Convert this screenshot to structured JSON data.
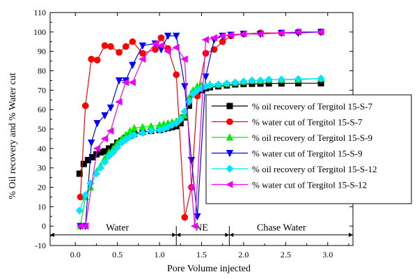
{
  "chart_data": {
    "type": "scatter",
    "title": "",
    "xlabel": "Pore Volume injected",
    "ylabel": "% Oil recovery and % Water cut",
    "xlim": [
      -0.3,
      3.3
    ],
    "ylim": [
      -10,
      110
    ],
    "xticks": [
      "0.0",
      "0.5",
      "1.0",
      "1.5",
      "2.0",
      "2.5",
      "3.0"
    ],
    "yticks": [
      "-10",
      "0",
      "10",
      "20",
      "30",
      "40",
      "50",
      "60",
      "70",
      "80",
      "90",
      "100",
      "110"
    ],
    "grid": false,
    "legend_position": "right",
    "phases": [
      {
        "label": "Water",
        "x_start": -0.3,
        "x_end": 1.2,
        "label_x": 0.5
      },
      {
        "label": "NE",
        "x_start": 1.2,
        "x_end": 1.83,
        "label_x": 1.5
      },
      {
        "label": "Chase Water",
        "x_start": 1.83,
        "x_end": 3.3,
        "label_x": 2.45
      }
    ],
    "series": [
      {
        "name": "% oil recovery of  Tergitol 15-S-7",
        "color": "#000000",
        "marker": "square",
        "points": [
          [
            0.05,
            27
          ],
          [
            0.1,
            32
          ],
          [
            0.15,
            34
          ],
          [
            0.2,
            35.5
          ],
          [
            0.25,
            37
          ],
          [
            0.3,
            38
          ],
          [
            0.35,
            38.5
          ],
          [
            0.4,
            40
          ],
          [
            0.45,
            41
          ],
          [
            0.5,
            43
          ],
          [
            0.55,
            44
          ],
          [
            0.6,
            45.5
          ],
          [
            0.65,
            46.5
          ],
          [
            0.7,
            47.5
          ],
          [
            0.8,
            48.5
          ],
          [
            0.9,
            49
          ],
          [
            1.0,
            49.5
          ],
          [
            1.05,
            50
          ],
          [
            1.1,
            50.5
          ],
          [
            1.15,
            51
          ],
          [
            1.2,
            51.5
          ],
          [
            1.25,
            53
          ],
          [
            1.3,
            56
          ],
          [
            1.35,
            62
          ],
          [
            1.4,
            68
          ],
          [
            1.45,
            69
          ],
          [
            1.5,
            70
          ],
          [
            1.55,
            71
          ],
          [
            1.6,
            71.5
          ],
          [
            1.7,
            72
          ],
          [
            1.8,
            72.5
          ],
          [
            1.9,
            73
          ],
          [
            2.0,
            73.2
          ],
          [
            2.1,
            73.3
          ],
          [
            2.2,
            73.4
          ],
          [
            2.3,
            73.5
          ],
          [
            2.45,
            73.5
          ],
          [
            2.65,
            73.6
          ],
          [
            2.92,
            73.6
          ]
        ]
      },
      {
        "name": "% water cut of  Tergitol 15-S-7",
        "color": "#ff0000",
        "marker": "circle",
        "points": [
          [
            0.06,
            15
          ],
          [
            0.12,
            62
          ],
          [
            0.19,
            86
          ],
          [
            0.26,
            85.5
          ],
          [
            0.35,
            93
          ],
          [
            0.42,
            92.5
          ],
          [
            0.52,
            89.5
          ],
          [
            0.6,
            92.5
          ],
          [
            0.68,
            95
          ],
          [
            0.8,
            89
          ],
          [
            0.95,
            91
          ],
          [
            1.02,
            97
          ],
          [
            1.1,
            91.5
          ],
          [
            1.2,
            78
          ],
          [
            1.3,
            4.5
          ],
          [
            1.38,
            20
          ],
          [
            1.45,
            67
          ],
          [
            1.55,
            89
          ],
          [
            1.65,
            91
          ],
          [
            1.75,
            95
          ],
          [
            1.85,
            98
          ],
          [
            2.0,
            99
          ],
          [
            2.2,
            99.5
          ],
          [
            2.45,
            99.5
          ],
          [
            2.65,
            100
          ],
          [
            2.92,
            100
          ]
        ]
      },
      {
        "name": "% oil recovery of  Tergitol 15-S-9",
        "color": "#00ee00",
        "marker": "triangle-up",
        "points": [
          [
            0.06,
            0
          ],
          [
            0.12,
            15
          ],
          [
            0.18,
            20
          ],
          [
            0.25,
            28
          ],
          [
            0.3,
            31
          ],
          [
            0.35,
            35
          ],
          [
            0.4,
            38
          ],
          [
            0.45,
            40
          ],
          [
            0.5,
            43
          ],
          [
            0.55,
            45
          ],
          [
            0.6,
            47
          ],
          [
            0.65,
            49
          ],
          [
            0.7,
            50.5
          ],
          [
            0.8,
            51
          ],
          [
            0.9,
            51.5
          ],
          [
            1.0,
            52
          ],
          [
            1.05,
            52.5
          ],
          [
            1.1,
            53
          ],
          [
            1.15,
            53.5
          ],
          [
            1.2,
            54
          ],
          [
            1.25,
            56
          ],
          [
            1.3,
            57
          ],
          [
            1.35,
            66
          ],
          [
            1.4,
            70
          ],
          [
            1.45,
            72
          ],
          [
            1.5,
            72.5
          ],
          [
            1.55,
            72.5
          ],
          [
            1.6,
            73
          ],
          [
            1.7,
            73
          ],
          [
            1.8,
            73.5
          ],
          [
            1.9,
            74
          ],
          [
            2.0,
            74.5
          ],
          [
            2.1,
            75
          ],
          [
            2.2,
            75
          ],
          [
            2.3,
            75.5
          ],
          [
            2.45,
            75.5
          ],
          [
            2.65,
            75.5
          ],
          [
            2.92,
            76
          ]
        ]
      },
      {
        "name": "% water cut of  Tergitol 15-S-9",
        "color": "#0000ff",
        "marker": "triangle-down",
        "points": [
          [
            0.06,
            0
          ],
          [
            0.12,
            0
          ],
          [
            0.19,
            43
          ],
          [
            0.26,
            53
          ],
          [
            0.35,
            57
          ],
          [
            0.42,
            61
          ],
          [
            0.52,
            75
          ],
          [
            0.6,
            75
          ],
          [
            0.68,
            83
          ],
          [
            0.8,
            93
          ],
          [
            0.95,
            94
          ],
          [
            1.02,
            91
          ],
          [
            1.1,
            98
          ],
          [
            1.2,
            98
          ],
          [
            1.3,
            72
          ],
          [
            1.38,
            34
          ],
          [
            1.45,
            5
          ],
          [
            1.55,
            77
          ],
          [
            1.65,
            96
          ],
          [
            1.75,
            98
          ],
          [
            1.85,
            98.5
          ],
          [
            2.0,
            99
          ],
          [
            2.2,
            99
          ],
          [
            2.45,
            99.5
          ],
          [
            2.65,
            99.5
          ],
          [
            2.92,
            100
          ]
        ]
      },
      {
        "name": "% oil recovery of  Tergitol 15-S-12",
        "color": "#00e5ff",
        "marker": "diamond",
        "points": [
          [
            0.05,
            8
          ],
          [
            0.12,
            16
          ],
          [
            0.18,
            22
          ],
          [
            0.25,
            27
          ],
          [
            0.3,
            30
          ],
          [
            0.35,
            33
          ],
          [
            0.4,
            36
          ],
          [
            0.45,
            38
          ],
          [
            0.5,
            40.5
          ],
          [
            0.55,
            43
          ],
          [
            0.6,
            44.5
          ],
          [
            0.65,
            46
          ],
          [
            0.7,
            47
          ],
          [
            0.8,
            48
          ],
          [
            0.9,
            49
          ],
          [
            1.0,
            49.5
          ],
          [
            1.05,
            50
          ],
          [
            1.1,
            51
          ],
          [
            1.15,
            52
          ],
          [
            1.2,
            53
          ],
          [
            1.25,
            55
          ],
          [
            1.3,
            59
          ],
          [
            1.35,
            64
          ],
          [
            1.4,
            68
          ],
          [
            1.45,
            70
          ],
          [
            1.5,
            71
          ],
          [
            1.55,
            72
          ],
          [
            1.6,
            72.5
          ],
          [
            1.7,
            73
          ],
          [
            1.8,
            73.5
          ],
          [
            1.9,
            74
          ],
          [
            2.0,
            74.5
          ],
          [
            2.1,
            75
          ],
          [
            2.2,
            75
          ],
          [
            2.3,
            75.5
          ],
          [
            2.45,
            75.5
          ],
          [
            2.65,
            75.8
          ],
          [
            2.92,
            76
          ]
        ]
      },
      {
        "name": "% water cut of  Tergitol 15-S-12",
        "color": "#ee00ee",
        "marker": "triangle-left",
        "points": [
          [
            0.06,
            0
          ],
          [
            0.12,
            0
          ],
          [
            0.26,
            40
          ],
          [
            0.35,
            45
          ],
          [
            0.42,
            49
          ],
          [
            0.52,
            64
          ],
          [
            0.6,
            74
          ],
          [
            0.68,
            74
          ],
          [
            0.8,
            86
          ],
          [
            0.95,
            94
          ],
          [
            1.02,
            93
          ],
          [
            1.1,
            90
          ],
          [
            1.2,
            92
          ],
          [
            1.3,
            86
          ],
          [
            1.38,
            20
          ],
          [
            1.42,
            0
          ],
          [
            1.55,
            96
          ],
          [
            1.65,
            97
          ],
          [
            1.75,
            98
          ],
          [
            1.85,
            98.5
          ],
          [
            2.0,
            99
          ],
          [
            2.2,
            99
          ],
          [
            2.45,
            99.5
          ],
          [
            2.65,
            100
          ],
          [
            2.92,
            100
          ]
        ]
      }
    ]
  }
}
